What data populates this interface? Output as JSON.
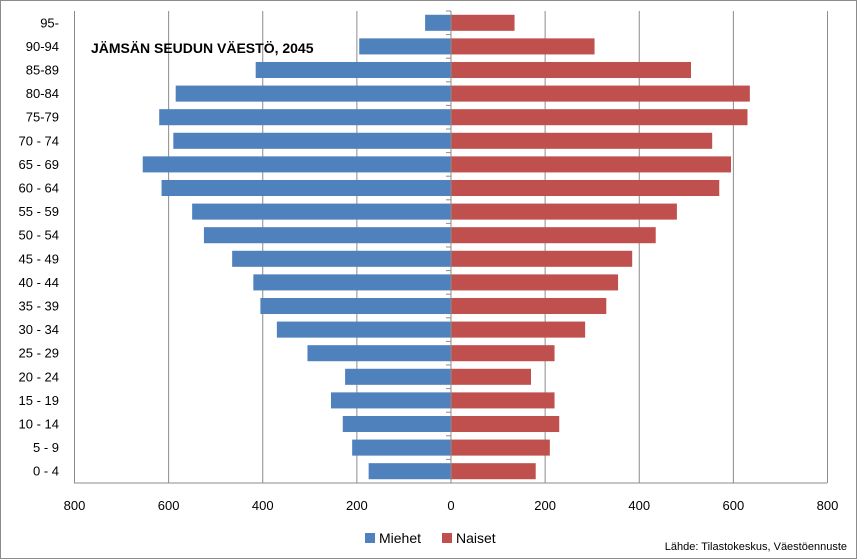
{
  "chart_data": {
    "type": "bar",
    "orientation": "horizontal",
    "title": "JÄMSÄN SEUDUN VÄESTÖ, 2045",
    "source": "Lähde: Tilastokeskus, Väestöennuste",
    "categories": [
      "95-",
      "90-94",
      "85-89",
      "80-84",
      "75-79",
      "70 - 74",
      "65 - 69",
      "60 - 64",
      "55 - 59",
      "50 - 54",
      "45 - 49",
      "40 - 44",
      "35 - 39",
      "30 - 34",
      "25 - 29",
      "20 - 24",
      "15 - 19",
      "10 - 14",
      "5 - 9",
      "0 - 4"
    ],
    "series": [
      {
        "name": "Miehet",
        "color": "#4f81bd",
        "side": "left",
        "values": [
          55,
          195,
          415,
          585,
          620,
          590,
          655,
          615,
          550,
          525,
          465,
          420,
          405,
          370,
          305,
          225,
          255,
          230,
          210,
          175
        ]
      },
      {
        "name": "Naiset",
        "color": "#c0504d",
        "side": "right",
        "values": [
          135,
          305,
          510,
          635,
          630,
          555,
          595,
          570,
          480,
          435,
          385,
          355,
          330,
          285,
          220,
          170,
          220,
          230,
          210,
          180
        ]
      }
    ],
    "xlim": [
      -800,
      800
    ],
    "x_ticks": [
      -800,
      -600,
      -400,
      -200,
      0,
      200,
      400,
      600,
      800
    ],
    "x_tick_labels": [
      "800",
      "600",
      "400",
      "200",
      "0",
      "200",
      "400",
      "600",
      "800"
    ],
    "grid": "vertical",
    "legend": "bottom"
  }
}
